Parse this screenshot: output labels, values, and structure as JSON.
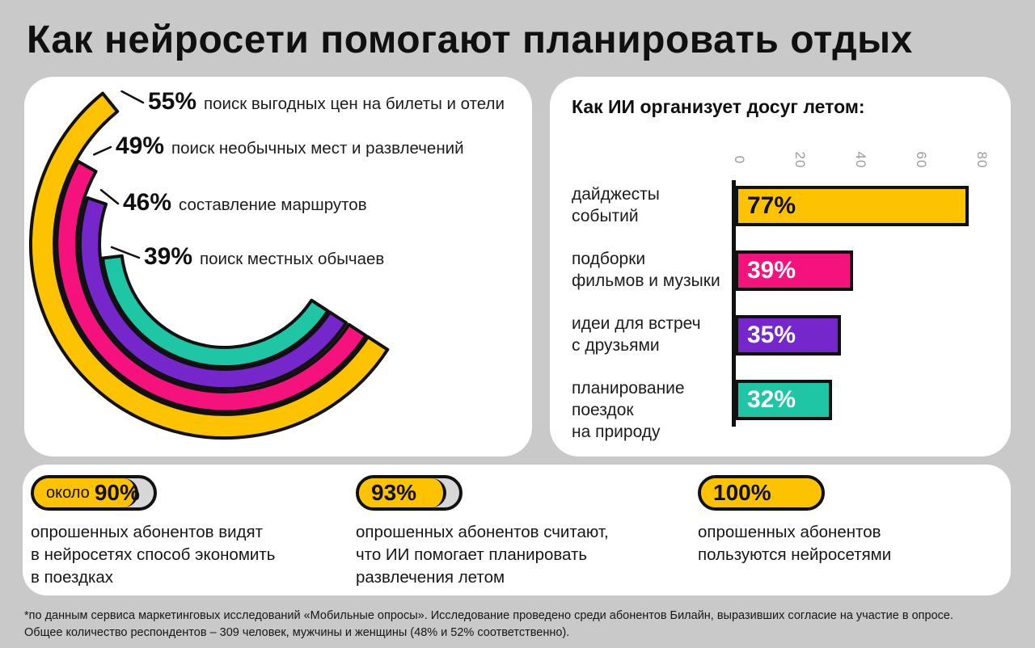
{
  "page": {
    "title": "Как нейросети помогают планировать отдых",
    "background_color": "#c9c9c9",
    "card_color": "#ffffff"
  },
  "colors": {
    "yellow": "#fdc300",
    "pink": "#f5127d",
    "purple": "#7527cb",
    "teal": "#1fc6a5",
    "axis_tick_gray": "#9b9b9b",
    "outline_black": "#111111"
  },
  "chart_data": [
    {
      "type": "radial_bar",
      "description": "concentric arc gauge, arc length = percent of full circle, common end angle at lower right",
      "points": [
        {
          "label": "поиск выгодных цен на билеты и отели",
          "value": 55,
          "value_label": "55%",
          "color": "#fdc300"
        },
        {
          "label": "поиск необычных мест и развлечений",
          "value": 49,
          "value_label": "49%",
          "color": "#f5127d"
        },
        {
          "label": "составление маршрутов",
          "value": 46,
          "value_label": "46%",
          "color": "#7527cb"
        },
        {
          "label": "поиск местных обычаев",
          "value": 39,
          "value_label": "39%",
          "color": "#1fc6a5"
        }
      ]
    },
    {
      "type": "bar",
      "orientation": "horizontal",
      "title": "Как ИИ организует досуг летом:",
      "categories": [
        [
          "дайджесты",
          "событий"
        ],
        [
          "подборки",
          "фильмов и музыки"
        ],
        [
          "идеи для встреч",
          "с друзьями"
        ],
        [
          "планирование",
          "поездок",
          "на природу"
        ]
      ],
      "values": [
        77,
        39,
        35,
        32
      ],
      "value_labels": [
        "77%",
        "39%",
        "35%",
        "32%"
      ],
      "colors": [
        "#fdc300",
        "#f5127d",
        "#7527cb",
        "#1fc6a5"
      ],
      "value_label_colors": [
        "#101010",
        "#ffffff",
        "#ffffff",
        "#ffffff"
      ],
      "xlim": [
        0,
        80
      ],
      "x_ticks": [
        "0",
        "20",
        "40",
        "60",
        "80"
      ],
      "grid": false,
      "legend": false
    }
  ],
  "stats": [
    {
      "prefix": "около",
      "value": "90%",
      "fill_pct": 87,
      "lines": [
        "опрошенных абонентов видят",
        "в нейросетях способ экономить",
        "в поездках"
      ]
    },
    {
      "prefix": "",
      "value": "93%",
      "fill_pct": 87,
      "lines": [
        "опрошенных абонентов считают,",
        "что ИИ помогает планировать",
        "развлечения летом"
      ]
    },
    {
      "prefix": "",
      "value": "100%",
      "fill_pct": 100,
      "lines": [
        "опрошенных абонентов",
        "пользуются нейросетями"
      ]
    }
  ],
  "footnote": {
    "lines": [
      "*по данным сервиса маркетинговых исследований «Мобильные опросы». Исследование проведено среди абонентов Билайн, выразивших согласие на участие в опросе.",
      "Общее количество респондентов – 309 человек, мужчины и женщины (48% и 52% соответственно)."
    ]
  }
}
